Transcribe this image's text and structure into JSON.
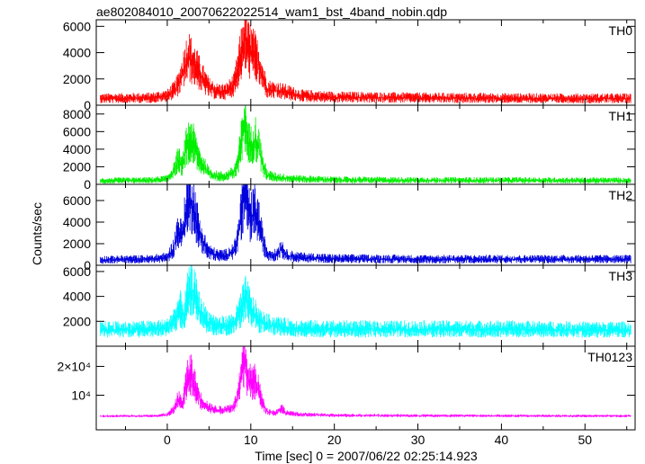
{
  "chart_data": {
    "type": "line",
    "title": "ae802084010_20070622022514_wam1_bst_4band_nobin.qdp",
    "xlabel": "Time [sec] 0 = 2007/06/22 02:25:14.923",
    "ylabel": "Counts/sec",
    "xlim": [
      -8.5,
      56
    ],
    "xticks": [
      "0",
      "10",
      "20",
      "30",
      "40",
      "50"
    ],
    "grid": false,
    "panels": [
      {
        "name": "TH0",
        "color": "#ff0000",
        "ylim": [
          0,
          6500
        ],
        "yticks": [
          "0",
          "2000",
          "4000",
          "6000"
        ],
        "yticks_values": [
          0,
          2000,
          4000,
          6000
        ],
        "series": {
          "name": "TH0",
          "baseline": 500,
          "spread": 400,
          "x": [
            -8,
            -2,
            0,
            1,
            1.5,
            2,
            2.5,
            3,
            3.5,
            4,
            5,
            6,
            7,
            8,
            8.5,
            9,
            9.3,
            9.6,
            10,
            10.5,
            11,
            11.5,
            12,
            13,
            14,
            16,
            20,
            30,
            40,
            50,
            55.5
          ],
          "y": [
            500,
            550,
            700,
            1200,
            1800,
            2800,
            3700,
            3200,
            2800,
            2200,
            1300,
            1000,
            1000,
            1500,
            2800,
            4200,
            5100,
            4200,
            4000,
            3600,
            3000,
            2000,
            1200,
            1100,
            1000,
            700,
            600,
            550,
            520,
            500,
            500
          ]
        }
      },
      {
        "name": "TH1",
        "color": "#00ee00",
        "ylim": [
          0,
          9000
        ],
        "yticks": [
          "0",
          "2000",
          "4000",
          "6000",
          "8000"
        ],
        "yticks_values": [
          0,
          2000,
          4000,
          6000,
          8000
        ],
        "series": {
          "name": "TH1",
          "baseline": 450,
          "spread": 380,
          "x": [
            -8,
            -2,
            0,
            0.8,
            1.3,
            1.8,
            2.3,
            2.8,
            3.3,
            4,
            5,
            6,
            7,
            8,
            8.5,
            9,
            9.3,
            9.6,
            10,
            10.5,
            11,
            11.5,
            12,
            13,
            14,
            16,
            20,
            30,
            40,
            50,
            55.5
          ],
          "y": [
            400,
            450,
            600,
            1500,
            2800,
            2000,
            4200,
            5200,
            4000,
            2500,
            1200,
            900,
            900,
            1300,
            2600,
            5500,
            7200,
            5000,
            4200,
            5200,
            4000,
            2000,
            1000,
            800,
            700,
            600,
            500,
            450,
            450,
            430,
            420
          ]
        }
      },
      {
        "name": "TH2",
        "color": "#0000dd",
        "ylim": [
          0,
          7500
        ],
        "yticks": [
          "0",
          "2000",
          "4000",
          "6000"
        ],
        "yticks_values": [
          0,
          2000,
          4000,
          6000
        ],
        "series": {
          "name": "TH2",
          "baseline": 550,
          "spread": 420,
          "x": [
            -8,
            -2,
            0,
            0.8,
            1.3,
            1.8,
            2.3,
            2.8,
            3.3,
            4,
            5,
            6,
            7,
            8,
            8.5,
            9,
            9.3,
            9.6,
            10,
            10.5,
            11,
            11.5,
            12,
            13,
            13.7,
            14.2,
            16,
            20,
            30,
            40,
            50,
            55.5
          ],
          "y": [
            500,
            550,
            700,
            1600,
            3200,
            2600,
            5200,
            6200,
            4800,
            2500,
            1200,
            900,
            900,
            1300,
            2600,
            5600,
            7000,
            5200,
            4200,
            5000,
            3800,
            2000,
            1000,
            900,
            1600,
            900,
            700,
            600,
            550,
            550,
            550,
            550
          ]
        }
      },
      {
        "name": "TH3",
        "color": "#00ffff",
        "ylim": [
          0,
          6500
        ],
        "yticks": [
          "2000",
          "4000",
          "6000"
        ],
        "yticks_values": [
          2000,
          4000,
          6000
        ],
        "series": {
          "name": "TH3",
          "baseline": 1300,
          "spread": 700,
          "x": [
            -8,
            -2,
            0,
            1,
            1.5,
            2,
            2.5,
            3,
            3.5,
            4,
            5,
            6,
            7,
            8,
            8.5,
            9,
            9.5,
            10,
            10.5,
            11,
            12,
            14,
            16,
            20,
            30,
            40,
            50,
            55.5
          ],
          "y": [
            1300,
            1350,
            1450,
            2200,
            3000,
            2400,
            4000,
            4500,
            3600,
            2600,
            1900,
            1600,
            1600,
            1800,
            2400,
            3200,
            3800,
            2800,
            2500,
            2000,
            1700,
            1500,
            1400,
            1350,
            1350,
            1350,
            1300,
            1300
          ]
        }
      },
      {
        "name": "TH0123",
        "color": "#ff00ff",
        "ylim": [
          -2000,
          27000
        ],
        "yticks": [
          "10⁴",
          "2×10⁴"
        ],
        "yticks_values": [
          10000,
          20000
        ],
        "series": {
          "name": "TH0123",
          "baseline": 2800,
          "spread": 500,
          "x": [
            -8,
            -2,
            0,
            0.8,
            1.3,
            1.8,
            2.3,
            2.8,
            3.3,
            4,
            5,
            6,
            7,
            8,
            8.5,
            9,
            9.3,
            9.6,
            10,
            10.5,
            11,
            11.5,
            12,
            13,
            13.7,
            14.2,
            16,
            20,
            30,
            40,
            50,
            55.5
          ],
          "y": [
            2700,
            2800,
            3200,
            5000,
            8500,
            6800,
            14000,
            17500,
            13000,
            8000,
            5500,
            4800,
            4800,
            6000,
            10000,
            18000,
            22000,
            16000,
            14000,
            15000,
            11000,
            6500,
            4200,
            3800,
            5500,
            3800,
            3300,
            3000,
            2900,
            2850,
            2800,
            2800
          ]
        }
      }
    ]
  }
}
